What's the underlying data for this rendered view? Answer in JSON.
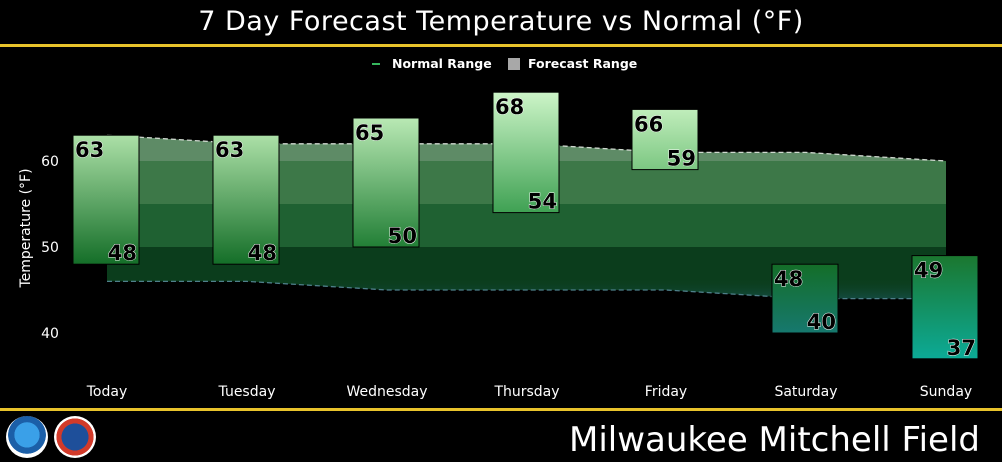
{
  "header": {
    "title": "7 Day Forecast Temperature vs Normal (°F)"
  },
  "footer": {
    "station": "Milwaukee Mitchell Field"
  },
  "logos": [
    {
      "name": "NOAA",
      "icon": "noaa-logo"
    },
    {
      "name": "National Weather Service",
      "icon": "nws-logo"
    }
  ],
  "legend": [
    {
      "label": "Normal Range",
      "color": "#36b75d"
    },
    {
      "label": "Forecast Range",
      "color": "#a8a8a8"
    }
  ],
  "chart_data": {
    "type": "bar",
    "title": "7 Day Forecast Temperature vs Normal (°F)",
    "ylabel": "Temperature (°F)",
    "xlabel": "",
    "ylim": [
      36.5,
      69
    ],
    "yticks": [
      40,
      50,
      60
    ],
    "categories": [
      "Today",
      "Tuesday",
      "Wednesday",
      "Thursday",
      "Friday",
      "Saturday",
      "Sunday"
    ],
    "series": [
      {
        "name": "Forecast Range",
        "type": "floating-bar",
        "high": [
          63,
          63,
          65,
          68,
          66,
          48,
          49
        ],
        "low": [
          48,
          48,
          50,
          54,
          59,
          40,
          37
        ]
      },
      {
        "name": "Normal Range",
        "type": "area",
        "high": [
          63,
          62,
          62,
          62,
          61,
          61,
          60
        ],
        "low": [
          46,
          46,
          45,
          45,
          45,
          44,
          44
        ]
      }
    ],
    "bands": [
      {
        "from": 44,
        "to": 50,
        "color": "#0b3d1c"
      },
      {
        "from": 50,
        "to": 55,
        "color": "#1f6132"
      },
      {
        "from": 55,
        "to": 60,
        "color": "#3d7848"
      },
      {
        "from": 60,
        "to": 70,
        "color": "#5e8b66"
      }
    ],
    "grid": false,
    "legend_position": "top-center"
  }
}
